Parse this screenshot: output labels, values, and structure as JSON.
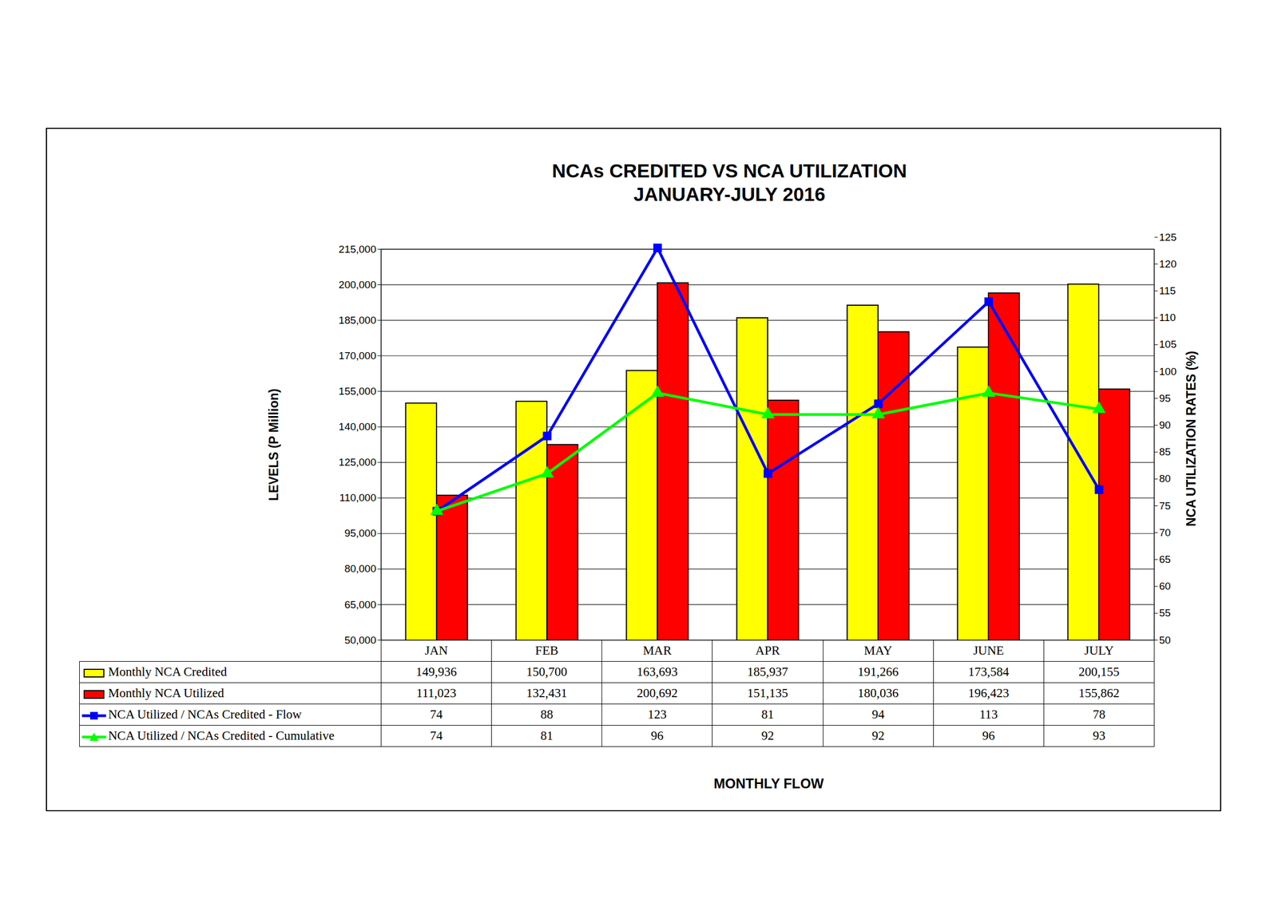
{
  "chart_data": {
    "type": "bar",
    "title": "NCAs CREDITED VS NCA UTILIZATION",
    "subtitle": "JANUARY-JULY 2016",
    "x_label": "MONTHLY FLOW",
    "y_label": "LEVELS (P Million)",
    "y2_label": "NCA UTILIZATION RATES (%)",
    "categories": [
      "JAN",
      "FEB",
      "MAR",
      "APR",
      "MAY",
      "JUNE",
      "JULY"
    ],
    "series": [
      {
        "name": "Monthly NCA Credited",
        "type": "bar",
        "color": "#ffff00",
        "values": [
          149936,
          150700,
          163693,
          185937,
          191266,
          173584,
          200155
        ],
        "value_labels": [
          "149,936",
          "150,700",
          "163,693",
          "185,937",
          "191,266",
          "173,584",
          "200,155"
        ]
      },
      {
        "name": "Monthly NCA Utilized",
        "type": "bar",
        "color": "#ff0000",
        "values": [
          111023,
          132431,
          200692,
          151135,
          180036,
          196423,
          155862
        ],
        "value_labels": [
          "111,023",
          "132,431",
          "200,692",
          "151,135",
          "180,036",
          "196,423",
          "155,862"
        ]
      },
      {
        "name": "NCA Utilized / NCAs Credited - Flow",
        "type": "line",
        "axis": "y2",
        "color": "#0000ff",
        "marker": "square",
        "values": [
          74,
          88,
          123,
          81,
          94,
          113,
          78
        ]
      },
      {
        "name": "NCA Utilized / NCAs Credited - Cumulative",
        "type": "line",
        "axis": "y2",
        "color": "#00ff00",
        "marker": "triangle",
        "values": [
          74,
          81,
          96,
          92,
          92,
          96,
          93
        ]
      }
    ],
    "ylim": [
      50000,
      215000
    ],
    "yticks": [
      {
        "value": 50000,
        "label": "50,000"
      },
      {
        "value": 65000,
        "label": "65,000"
      },
      {
        "value": 80000,
        "label": "80,000"
      },
      {
        "value": 95000,
        "label": "95,000"
      },
      {
        "value": 110000,
        "label": "110,000"
      },
      {
        "value": 125000,
        "label": "125,000"
      },
      {
        "value": 140000,
        "label": "140,000"
      },
      {
        "value": 155000,
        "label": "155,000"
      },
      {
        "value": 170000,
        "label": "170,000"
      },
      {
        "value": 185000,
        "label": "185,000"
      },
      {
        "value": 200000,
        "label": "200,000"
      },
      {
        "value": 215000,
        "label": "215,000"
      }
    ],
    "y2lim": [
      50,
      125
    ],
    "y2ticks": [
      50,
      55,
      60,
      65,
      70,
      75,
      80,
      85,
      90,
      95,
      100,
      105,
      110,
      115,
      120,
      125
    ],
    "grid": true
  }
}
